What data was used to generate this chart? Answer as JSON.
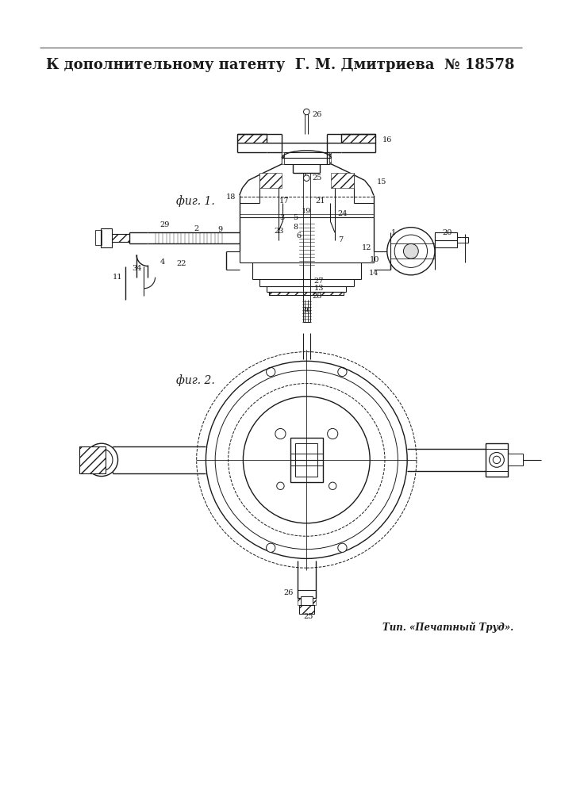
{
  "title_line": "К дополнительному патенту  Г. М. Дмитриева  № 18578",
  "fig1_label": "фиг. 1.",
  "fig2_label": "фиг. 2.",
  "footer": "Тип. «Печатный Труд».",
  "bg_color": "#ffffff",
  "lc": "#1a1a1a"
}
